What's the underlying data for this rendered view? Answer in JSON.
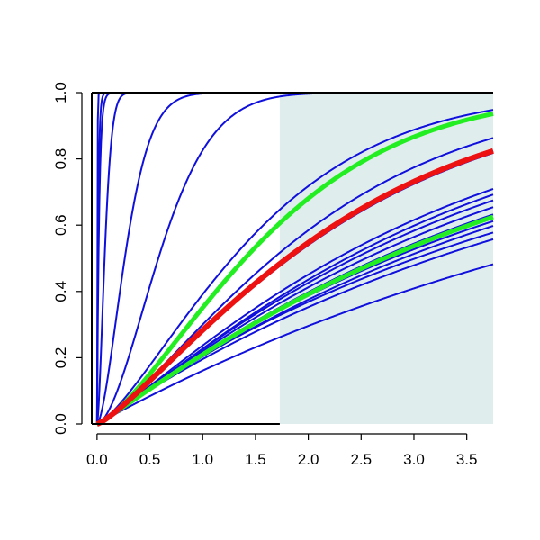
{
  "chart_data": {
    "type": "line",
    "title": "",
    "xlabel": "",
    "ylabel": "",
    "xlim": [
      -0.05,
      3.75
    ],
    "ylim": [
      0,
      1
    ],
    "x_ticks": [
      0.0,
      0.5,
      1.0,
      1.5,
      2.0,
      2.5,
      3.0,
      3.5
    ],
    "x_tick_labels": [
      "0.0",
      "0.5",
      "1.0",
      "1.5",
      "2.0",
      "2.5",
      "3.0",
      "3.5"
    ],
    "y_ticks": [
      0.0,
      0.2,
      0.4,
      0.6,
      0.8,
      1.0
    ],
    "y_tick_labels": [
      "0.0",
      "0.2",
      "0.4",
      "0.6",
      "0.8",
      "1.0"
    ],
    "grid": false,
    "shaded_region": {
      "x_from": 1.73,
      "x_to": 3.75,
      "color": "#e0eded"
    },
    "curve_model": "y = 1 - exp(-(x / scale)^shape), evaluated over the x range",
    "series": [
      {
        "scale": 0.003,
        "shape": 1.0,
        "color": "#1010dd",
        "width": 2
      },
      {
        "scale": 0.012,
        "shape": 1.0,
        "color": "#1010dd",
        "width": 2
      },
      {
        "scale": 0.02,
        "shape": 1.0,
        "color": "#1010dd",
        "width": 2
      },
      {
        "scale": 0.09,
        "shape": 1.6,
        "color": "#1010dd",
        "width": 2
      },
      {
        "scale": 0.33,
        "shape": 1.6,
        "color": "#1010dd",
        "width": 2
      },
      {
        "scale": 0.72,
        "shape": 1.7,
        "color": "#1010dd",
        "width": 2
      },
      {
        "scale": 1.68,
        "shape": 1.35,
        "color": "#1010dd",
        "width": 2
      },
      {
        "scale": 2.21,
        "shape": 1.3,
        "color": "#1010dd",
        "width": 2
      },
      {
        "scale": 2.41,
        "shape": 1.25,
        "color": "#1010dd",
        "width": 2
      },
      {
        "scale": 2.45,
        "shape": 1.25,
        "color": "#1010dd",
        "width": 2
      },
      {
        "scale": 3.12,
        "shape": 1.15,
        "color": "#1010dd",
        "width": 2
      },
      {
        "scale": 3.25,
        "shape": 1.15,
        "color": "#1010dd",
        "width": 2
      },
      {
        "scale": 3.38,
        "shape": 1.12,
        "color": "#1010dd",
        "width": 2
      },
      {
        "scale": 3.55,
        "shape": 1.1,
        "color": "#1010dd",
        "width": 2
      },
      {
        "scale": 3.75,
        "shape": 1.08,
        "color": "#1010dd",
        "width": 2
      },
      {
        "scale": 3.95,
        "shape": 1.05,
        "color": "#1010dd",
        "width": 2
      },
      {
        "scale": 4.1,
        "shape": 1.05,
        "color": "#1010dd",
        "width": 2
      },
      {
        "scale": 4.35,
        "shape": 1.0,
        "color": "#1010dd",
        "width": 2
      },
      {
        "scale": 4.6,
        "shape": 1.0,
        "color": "#1010dd",
        "width": 2
      },
      {
        "scale": 5.7,
        "shape": 1.0,
        "color": "#1010dd",
        "width": 2
      },
      {
        "scale": 1.82,
        "shape": 1.4,
        "color": "#22ee22",
        "width": 5
      },
      {
        "scale": 3.82,
        "shape": 1.08,
        "color": "#22ee22",
        "width": 5
      },
      {
        "scale": 2.41,
        "shape": 1.25,
        "color": "#ee1111",
        "width": 6
      }
    ]
  }
}
